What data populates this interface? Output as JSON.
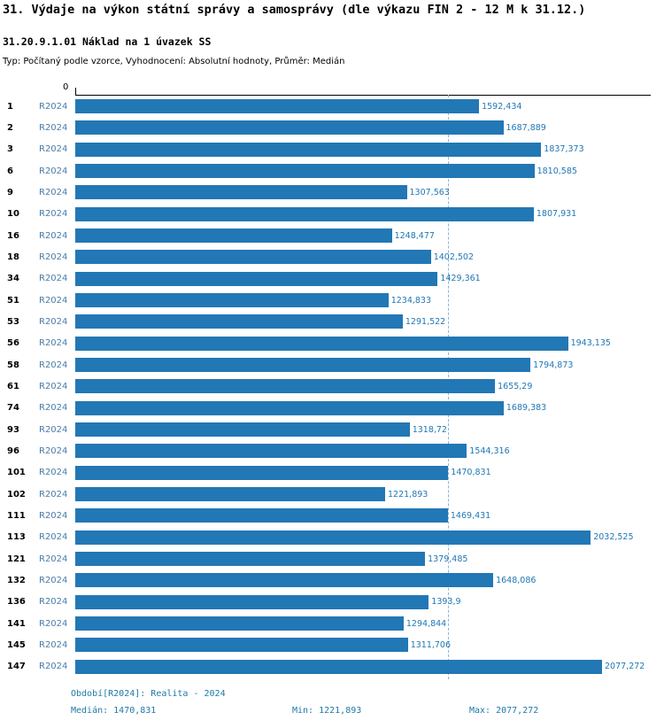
{
  "header": {
    "title": "31. Výdaje na výkon státní správy a samosprávy (dle výkazu FIN 2 - 12 M k 31.12.)",
    "subtitle": "31.20.9.1.01 Náklad na 1 úvazek SS",
    "type_line": "Typ: Počítaný podle vzorce, Vyhodnocení: Absolutní hodnoty, Průměr: Medián"
  },
  "chart_data": {
    "type": "bar",
    "orientation": "horizontal",
    "title": "31.20.9.1.01 Náklad na 1 úvazek SS",
    "series_label": "R2024",
    "axis_zero_label": "0",
    "x_min": 0,
    "categories": [
      "1",
      "2",
      "3",
      "6",
      "9",
      "10",
      "16",
      "18",
      "34",
      "51",
      "53",
      "56",
      "58",
      "61",
      "74",
      "93",
      "96",
      "101",
      "102",
      "111",
      "113",
      "121",
      "132",
      "136",
      "141",
      "145",
      "147"
    ],
    "values": [
      1592.434,
      1687.889,
      1837.373,
      1810.585,
      1307.563,
      1807.931,
      1248.477,
      1402.502,
      1429.361,
      1234.833,
      1291.522,
      1943.135,
      1794.873,
      1655.29,
      1689.383,
      1318.72,
      1544.316,
      1470.831,
      1221.893,
      1469.431,
      2032.525,
      1379.485,
      1648.086,
      1393.9,
      1294.844,
      1311.706,
      2077.272
    ],
    "value_labels": [
      "1592,434",
      "1687,889",
      "1837,373",
      "1810,585",
      "1307,563",
      "1807,931",
      "1248,477",
      "1402,502",
      "1429,361",
      "1234,833",
      "1291,522",
      "1943,135",
      "1794,873",
      "1655,29",
      "1689,383",
      "1318,72",
      "1544,316",
      "1470,831",
      "1221,893",
      "1469,431",
      "2032,525",
      "1379,485",
      "1648,086",
      "1393,9",
      "1294,844",
      "1311,706",
      "2077,272"
    ],
    "median": 1470.831,
    "min": 1221.893,
    "max": 2077.272,
    "bar_color": "#2277b5",
    "value_label_color": "#1f77b4",
    "series_label_color": "#4b7ca8",
    "median_line_color": "#8ab4d4"
  },
  "footer": {
    "period": "Období[R2024]: Realita - 2024",
    "median": "Medián: 1470,831",
    "min": "Min: 1221,893",
    "max": "Max: 2077,272"
  }
}
